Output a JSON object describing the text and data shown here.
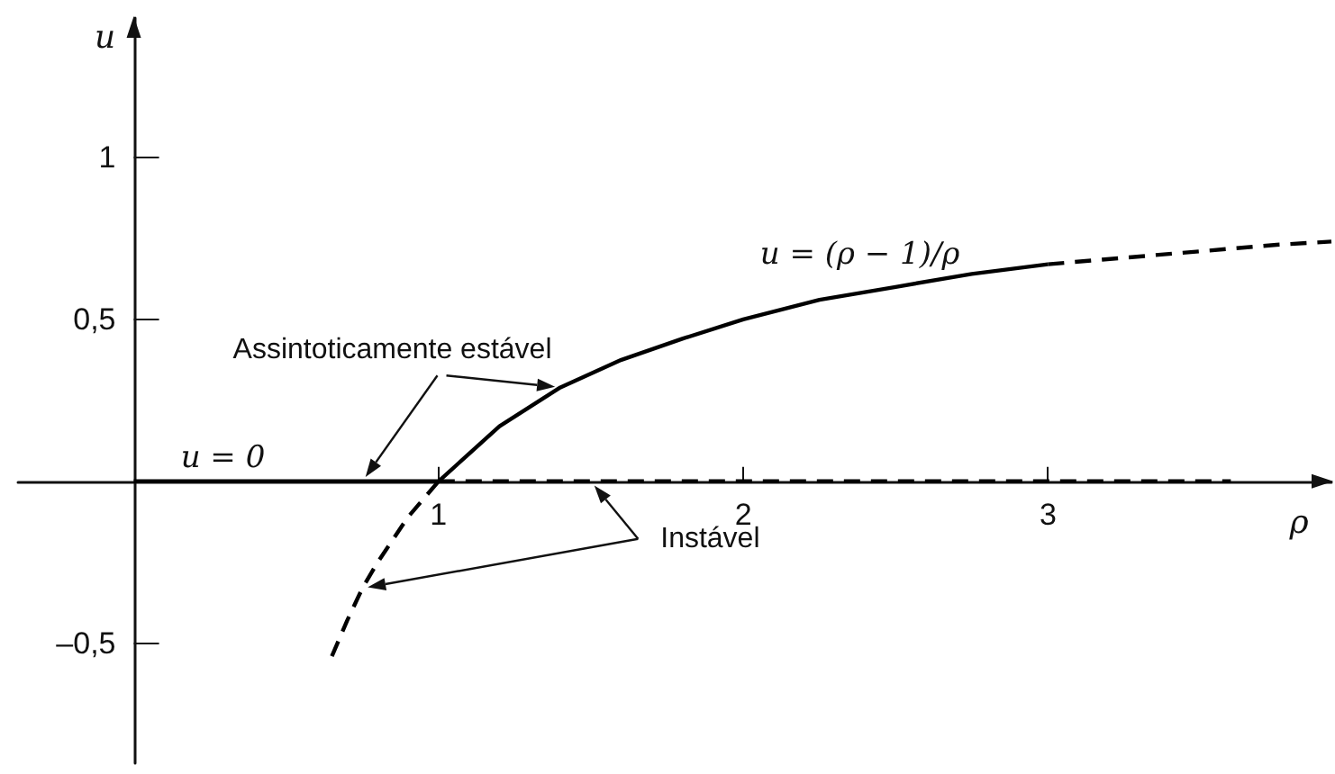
{
  "chart_data": {
    "type": "line",
    "xlabel": "ρ",
    "ylabel": "u",
    "xlim": [
      -0.38,
      3.93
    ],
    "ylim": [
      -0.87,
      1.43
    ],
    "xticks": [
      1,
      2,
      3
    ],
    "yticks": [
      {
        "value": -0.5,
        "label": "–0,5"
      },
      {
        "value": 0.5,
        "label": "0,5"
      },
      1
    ],
    "marker": "none",
    "series": [
      {
        "color": "#000000",
        "line_style": "solid",
        "x": [
          0,
          0.25,
          0.5,
          0.75,
          1
        ],
        "values": [
          0,
          0,
          0,
          0,
          0
        ]
      },
      {
        "color": "#000000",
        "line_style": "dashed",
        "x": [
          1,
          1.5,
          2,
          2.5,
          3,
          3.6
        ],
        "values": [
          0,
          0,
          0,
          0,
          0,
          0
        ]
      },
      {
        "color": "#000000",
        "line_style": "dashed",
        "x": [
          0.65,
          0.7,
          0.75,
          0.8,
          0.9,
          1
        ],
        "values": [
          -0.54,
          -0.43,
          -0.33,
          -0.25,
          -0.11,
          0
        ]
      },
      {
        "color": "#000000",
        "line_style": "solid",
        "x": [
          1,
          1.2,
          1.4,
          1.6,
          1.8,
          2,
          2.25,
          2.5,
          2.75,
          3
        ],
        "values": [
          0,
          0.17,
          0.29,
          0.375,
          0.44,
          0.5,
          0.56,
          0.6,
          0.64,
          0.67
        ]
      },
      {
        "color": "#000000",
        "line_style": "dashed",
        "x": [
          3,
          3.25,
          3.5,
          3.75,
          3.93
        ],
        "values": [
          0.67,
          0.69,
          0.71,
          0.73,
          0.74
        ]
      }
    ],
    "annotations": [
      "u = (ρ − 1)/ρ",
      "Assintoticamente estável",
      "u = 0",
      "Instável"
    ]
  }
}
